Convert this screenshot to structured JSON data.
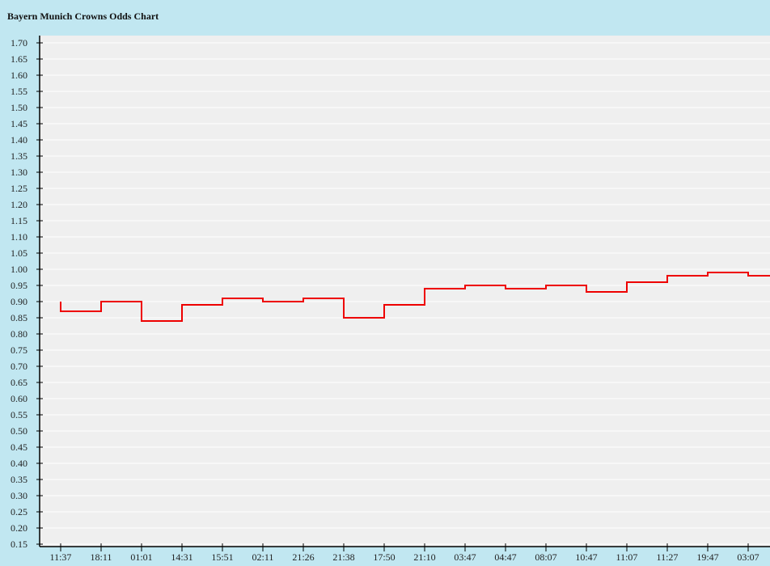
{
  "chart_data": {
    "type": "line",
    "step": true,
    "title": "Bayern Munich Crowns Odds Chart",
    "xlabel": "",
    "ylabel": "",
    "ylim": [
      0.15,
      1.7
    ],
    "ytick_step": 0.05,
    "grid": true,
    "categories": [
      "11:37",
      "18:11",
      "01:01",
      "14:31",
      "15:51",
      "02:11",
      "21:26",
      "21:38",
      "17:50",
      "21:10",
      "03:47",
      "04:47",
      "08:07",
      "10:47",
      "11:07",
      "11:27",
      "19:47",
      "03:07"
    ],
    "series": [
      {
        "color": "#ee0000",
        "initial_value": 0.9,
        "values": [
          0.87,
          0.9,
          0.84,
          0.89,
          0.91,
          0.9,
          0.91,
          0.85,
          0.89,
          0.94,
          0.95,
          0.94,
          0.95,
          0.93,
          0.96,
          0.98,
          0.99,
          0.98
        ]
      }
    ],
    "colors": {
      "background": "#c1e7f1",
      "plot_background": "#efefef",
      "grid": "#ffffff",
      "line": "#ee0000"
    }
  }
}
